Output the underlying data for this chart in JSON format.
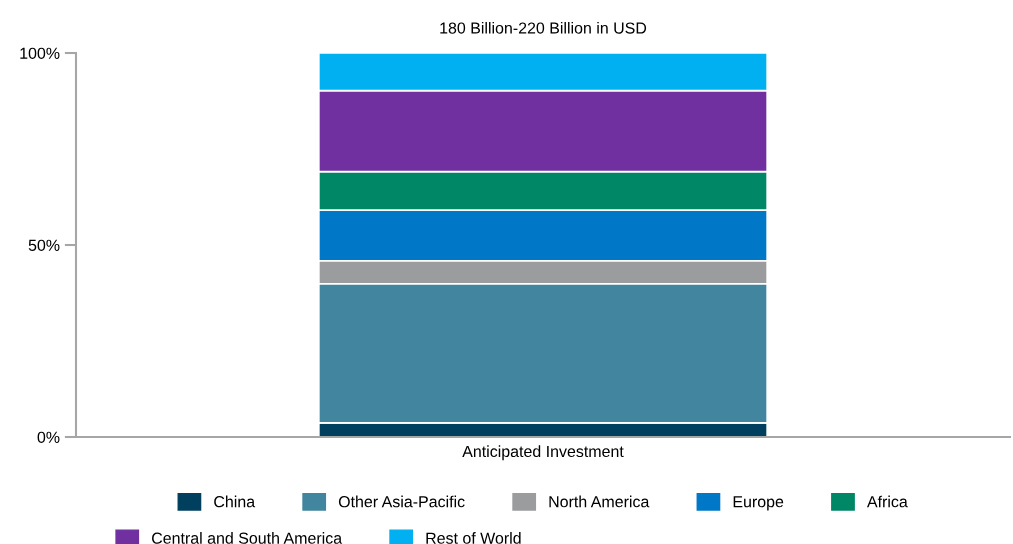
{
  "chart_data": {
    "type": "bar",
    "stacked": true,
    "title": "180 Billion-220 Billion in USD",
    "categories": [
      "Anticipated Investment"
    ],
    "series": [
      {
        "name": "China",
        "color": "#00405f",
        "values": [
          3.7
        ]
      },
      {
        "name": "Other Asia-Pacific",
        "color": "#41859e",
        "values": [
          36.2
        ]
      },
      {
        "name": "North America",
        "color": "#9b9c9e",
        "values": [
          6.0
        ]
      },
      {
        "name": "Europe",
        "color": "#0078c8",
        "values": [
          13.2
        ]
      },
      {
        "name": "Africa",
        "color": "#008766",
        "values": [
          10.0
        ]
      },
      {
        "name": "Central and South America",
        "color": "#7030a0",
        "values": [
          21.1
        ]
      },
      {
        "name": "Rest of World",
        "color": "#00b0f0",
        "values": [
          9.8
        ]
      }
    ],
    "ylim": [
      0,
      100
    ],
    "yticks": [
      {
        "value": 0,
        "label": "0%"
      },
      {
        "value": 50,
        "label": "50%"
      },
      {
        "value": 100,
        "label": "100%"
      }
    ],
    "grid": false,
    "legend": "bottom"
  }
}
